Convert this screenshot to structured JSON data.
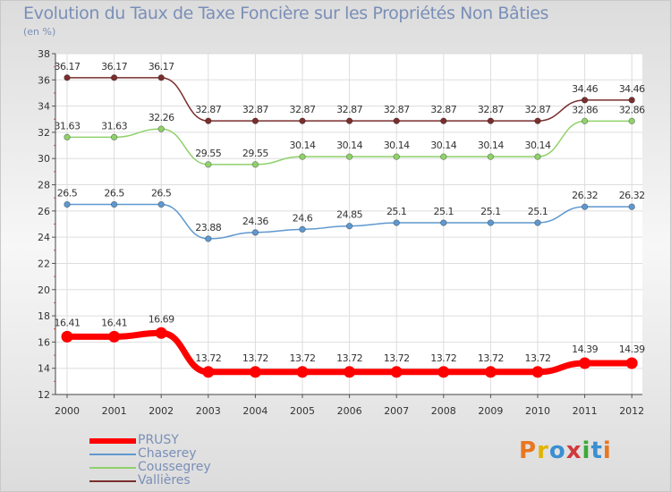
{
  "title": "Evolution du Taux de Taxe Foncière sur les Propriétés Non Bâties",
  "subtitle": "(en %)",
  "logo": {
    "text": "Proxiti",
    "colors": [
      "#e87722",
      "#e2b400",
      "#3a8fd1",
      "#d13a3a",
      "#3aaa3a",
      "#3a8fd1",
      "#e87722"
    ]
  },
  "chart_data": {
    "type": "line",
    "categories": [
      "2000",
      "2001",
      "2002",
      "2003",
      "2004",
      "2005",
      "2006",
      "2007",
      "2008",
      "2009",
      "2010",
      "2011",
      "2012"
    ],
    "ylim": [
      12,
      38
    ],
    "yticks": [
      "12",
      "14",
      "16",
      "18",
      "20",
      "22",
      "24",
      "26",
      "28",
      "30",
      "32",
      "34",
      "36",
      "38"
    ],
    "series": [
      {
        "name": "Vallières",
        "color": "#7a2e2e",
        "values": [
          36.17,
          36.17,
          36.17,
          32.87,
          32.87,
          32.87,
          32.87,
          32.87,
          32.87,
          32.87,
          32.87,
          34.46,
          34.46
        ],
        "labels": [
          "36.17",
          "36.17",
          "36.17",
          "32.87",
          "32.87",
          "32.87",
          "32.87",
          "32.87",
          "32.87",
          "32.87",
          "32.87",
          "34.46",
          "34.46"
        ]
      },
      {
        "name": "Coussegrey",
        "color": "#8fd16a",
        "values": [
          31.63,
          31.63,
          32.26,
          29.55,
          29.55,
          30.14,
          30.14,
          30.14,
          30.14,
          30.14,
          30.14,
          32.86,
          32.86
        ],
        "labels": [
          "31.63",
          "31.63",
          "32.26",
          "29.55",
          "29.55",
          "30.14",
          "30.14",
          "30.14",
          "30.14",
          "30.14",
          "30.14",
          "32.86",
          "32.86"
        ]
      },
      {
        "name": "Chaserey",
        "color": "#5f98cf",
        "values": [
          26.5,
          26.5,
          26.5,
          23.88,
          24.36,
          24.6,
          24.85,
          25.1,
          25.1,
          25.1,
          25.1,
          26.32,
          26.32
        ],
        "labels": [
          "26.5",
          "26.5",
          "26.5",
          "23.88",
          "24.36",
          "24.6",
          "24.85",
          "25.1",
          "25.1",
          "25.1",
          "25.1",
          "26.32",
          "26.32"
        ]
      },
      {
        "name": "PRUSY",
        "color": "#ff0000",
        "values": [
          16.41,
          16.41,
          16.69,
          13.72,
          13.72,
          13.72,
          13.72,
          13.72,
          13.72,
          13.72,
          13.72,
          14.39,
          14.39
        ],
        "labels": [
          "16.41",
          "16.41",
          "16.69",
          "13.72",
          "13.72",
          "13.72",
          "13.72",
          "13.72",
          "13.72",
          "13.72",
          "13.72",
          "14.39",
          "14.39"
        ]
      }
    ],
    "legend": [
      "PRUSY",
      "Chaserey",
      "Coussegrey",
      "Vallières"
    ],
    "legend_colors": [
      "#ff0000",
      "#5f98cf",
      "#8fd16a",
      "#7a2e2e"
    ]
  }
}
